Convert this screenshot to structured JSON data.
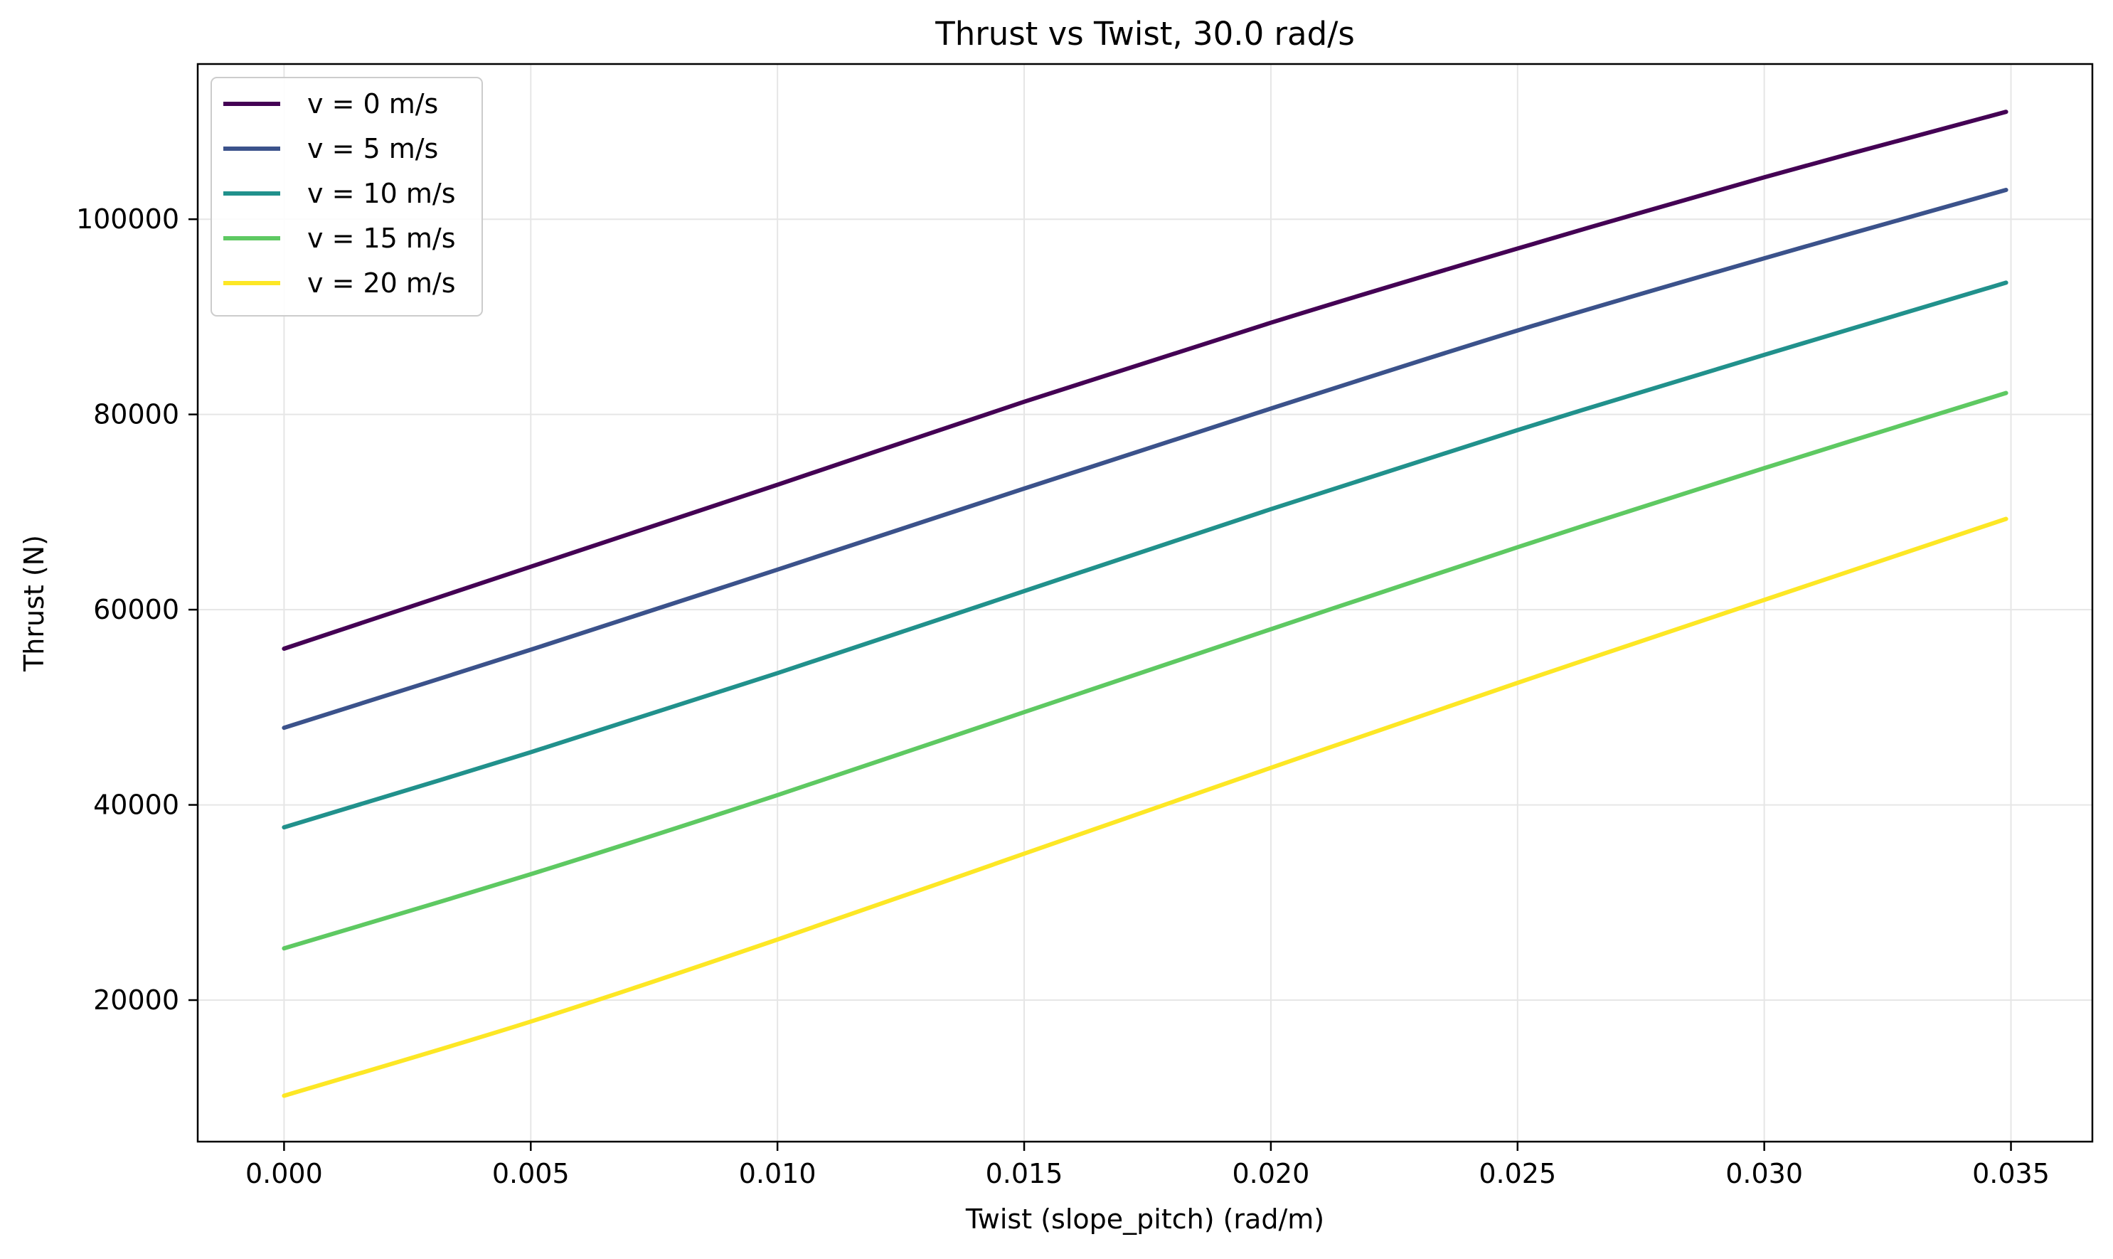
{
  "chart_data": {
    "type": "line",
    "title": "Thrust vs Twist, 30.0 rad/s",
    "xlabel": "Twist (slope_pitch) (rad/m)",
    "ylabel": "Thrust (N)",
    "xlim": [
      -0.00175,
      0.03665
    ],
    "ylim": [
      5500,
      115900
    ],
    "grid": true,
    "legend_position": "top-left",
    "x": [
      0.0,
      0.005,
      0.01,
      0.015,
      0.02,
      0.025,
      0.03,
      0.0349
    ],
    "xticks": [
      0.0,
      0.005,
      0.01,
      0.015,
      0.02,
      0.025,
      0.03,
      0.035
    ],
    "xtick_labels": [
      "0.000",
      "0.005",
      "0.010",
      "0.015",
      "0.020",
      "0.025",
      "0.030",
      "0.035"
    ],
    "yticks": [
      20000,
      40000,
      60000,
      80000,
      100000
    ],
    "ytick_labels": [
      "20000",
      "40000",
      "60000",
      "80000",
      "100000"
    ],
    "series": [
      {
        "name": "v = 0 m/s",
        "color": "#440154",
        "values": [
          56000,
          64400,
          72800,
          81300,
          89400,
          97000,
          104300,
          111000
        ]
      },
      {
        "name": "v = 5 m/s",
        "color": "#3b528b",
        "values": [
          47900,
          55900,
          64100,
          72400,
          80600,
          88600,
          96000,
          103000
        ]
      },
      {
        "name": "v = 10 m/s",
        "color": "#21918c",
        "values": [
          37700,
          45400,
          53500,
          61900,
          70300,
          78400,
          86100,
          93500
        ]
      },
      {
        "name": "v = 15 m/s",
        "color": "#5ec962",
        "values": [
          25300,
          32900,
          41000,
          49500,
          58000,
          66400,
          74500,
          82200
        ]
      },
      {
        "name": "v = 20 m/s",
        "color": "#fde725",
        "values": [
          10200,
          17800,
          26200,
          35000,
          43800,
          52500,
          61000,
          69300
        ]
      }
    ]
  }
}
